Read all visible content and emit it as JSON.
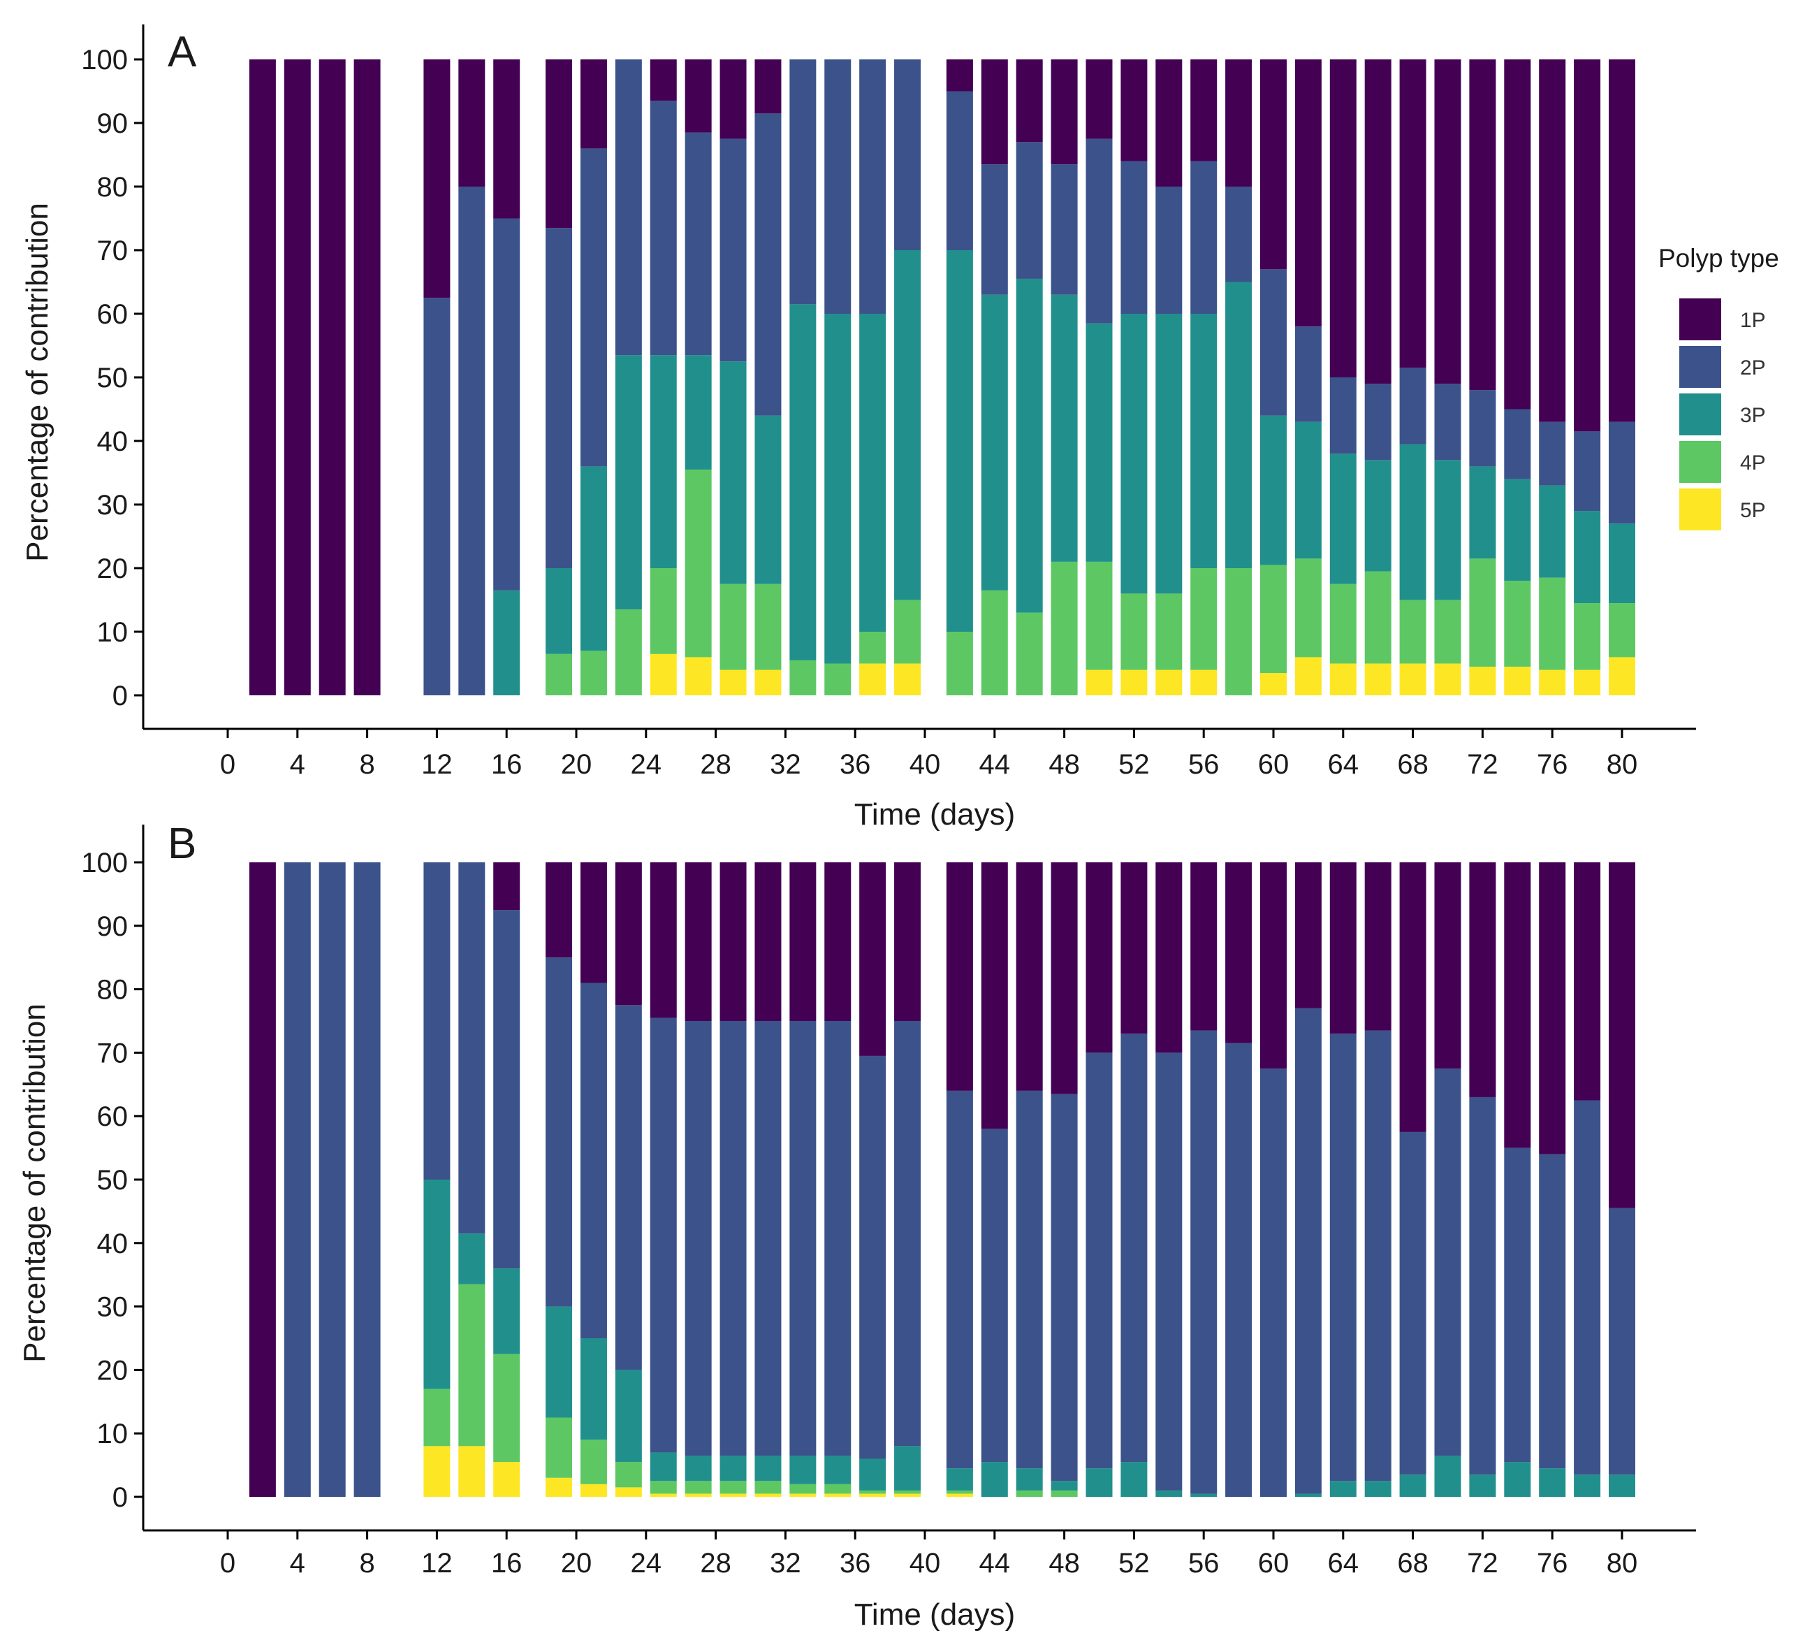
{
  "legend": {
    "title": "Polyp type",
    "entries": [
      {
        "label": "1P",
        "color": "#440154"
      },
      {
        "label": "2P",
        "color": "#3B528B"
      },
      {
        "label": "3P",
        "color": "#21908C"
      },
      {
        "label": "4P",
        "color": "#5DC863"
      },
      {
        "label": "5P",
        "color": "#FDE725"
      }
    ]
  },
  "chart_data": [
    {
      "type": "bar",
      "stacked": true,
      "panel": "A",
      "xlabel": "Time (days)",
      "ylabel": "Percentage of contribution",
      "ylim": [
        0,
        100
      ],
      "y_ticks": [
        0,
        10,
        20,
        30,
        40,
        50,
        60,
        70,
        80,
        90,
        100
      ],
      "x_ticks": [
        0,
        4,
        8,
        12,
        16,
        20,
        24,
        28,
        32,
        36,
        40,
        44,
        48,
        52,
        56,
        60,
        64,
        68,
        72,
        76,
        80
      ],
      "x": [
        2,
        4,
        6,
        8,
        12,
        14,
        16,
        19,
        21,
        23,
        25,
        27,
        29,
        31,
        33,
        35,
        37,
        39,
        42,
        44,
        46,
        48,
        50,
        52,
        54,
        56,
        58,
        60,
        62,
        64,
        66,
        68,
        70,
        72,
        74,
        76,
        78,
        80
      ],
      "series": [
        {
          "name": "5P",
          "values": [
            0,
            0,
            0,
            0,
            0,
            0,
            0,
            0,
            0,
            0,
            6.5,
            6,
            4,
            4,
            0,
            0,
            5,
            5,
            0,
            0,
            0,
            0,
            4,
            4,
            4,
            4,
            0,
            3.5,
            6,
            5,
            5,
            5,
            5,
            4.5,
            4.5,
            4,
            4,
            6
          ]
        },
        {
          "name": "4P",
          "values": [
            0,
            0,
            0,
            0,
            0,
            0,
            0,
            6.5,
            7,
            13.5,
            13.5,
            29.5,
            13.5,
            13.5,
            5.5,
            5,
            5,
            10,
            10,
            16.5,
            13,
            21,
            17,
            12,
            12,
            16,
            20,
            17,
            15.5,
            12.5,
            14.5,
            10,
            10,
            17,
            13.5,
            14.5,
            10.5,
            8.5
          ]
        },
        {
          "name": "3P",
          "values": [
            0,
            0,
            0,
            0,
            0,
            0,
            16.5,
            13.5,
            29,
            40,
            33.5,
            18,
            35,
            26.5,
            56,
            55,
            50,
            55,
            60,
            46.5,
            52.5,
            42,
            37.5,
            44,
            44,
            40,
            45,
            23.5,
            21.5,
            20.5,
            17.5,
            24.5,
            22,
            14.5,
            16,
            14.5,
            14.5,
            12.5
          ]
        },
        {
          "name": "2P",
          "values": [
            0,
            0,
            0,
            0,
            62.5,
            80,
            58.5,
            53.5,
            50,
            46.5,
            40,
            35,
            35,
            47.5,
            38.5,
            40,
            40,
            30,
            25,
            20.5,
            21.5,
            20.5,
            29,
            24,
            20,
            24,
            15,
            23,
            15,
            12,
            12,
            12,
            12,
            12,
            11,
            10,
            12.5,
            16
          ]
        },
        {
          "name": "1P",
          "values": [
            100,
            100,
            100,
            100,
            37.5,
            20,
            25,
            26.5,
            14,
            0,
            6.5,
            11.5,
            12.5,
            8.5,
            0,
            0,
            0,
            0,
            5,
            16.5,
            13,
            16.5,
            12.5,
            16,
            20,
            16,
            20,
            33,
            42,
            50,
            51,
            48.5,
            51,
            52,
            55,
            57,
            58.5,
            57
          ]
        }
      ]
    },
    {
      "type": "bar",
      "stacked": true,
      "panel": "B",
      "xlabel": "Time (days)",
      "ylabel": "Percentage of contribution",
      "ylim": [
        0,
        100
      ],
      "y_ticks": [
        0,
        10,
        20,
        30,
        40,
        50,
        60,
        70,
        80,
        90,
        100
      ],
      "x_ticks": [
        0,
        4,
        8,
        12,
        16,
        20,
        24,
        28,
        32,
        36,
        40,
        44,
        48,
        52,
        56,
        60,
        64,
        68,
        72,
        76,
        80
      ],
      "x": [
        2,
        4,
        6,
        8,
        12,
        14,
        16,
        19,
        21,
        23,
        25,
        27,
        29,
        31,
        33,
        35,
        37,
        39,
        42,
        44,
        46,
        48,
        50,
        52,
        54,
        56,
        58,
        60,
        62,
        64,
        66,
        68,
        70,
        72,
        74,
        76,
        78,
        80
      ],
      "series": [
        {
          "name": "5P",
          "values": [
            0,
            0,
            0,
            0,
            8,
            8,
            5.5,
            3,
            2,
            1.5,
            0.5,
            0.5,
            0.5,
            0.5,
            0.5,
            0.5,
            0.5,
            0.5,
            0.5,
            0,
            0,
            0,
            0,
            0,
            0,
            0,
            0,
            0,
            0,
            0,
            0,
            0,
            0,
            0,
            0,
            0,
            0,
            0
          ]
        },
        {
          "name": "4P",
          "values": [
            0,
            0,
            0,
            0,
            9,
            25.5,
            17,
            9.5,
            7,
            4,
            2,
            2,
            2,
            2,
            1.5,
            1.5,
            0.5,
            0.5,
            0.5,
            0,
            1,
            1,
            0,
            0,
            0,
            0,
            0,
            0,
            0,
            0,
            0,
            0,
            0,
            0,
            0,
            0,
            0,
            0
          ]
        },
        {
          "name": "3P",
          "values": [
            0,
            0,
            0,
            0,
            33,
            8,
            13.5,
            17.5,
            16,
            14.5,
            4.5,
            4,
            4,
            4,
            4.5,
            4.5,
            5,
            7,
            3.5,
            5.5,
            3.5,
            1.5,
            4.5,
            5.5,
            1,
            0.5,
            0,
            0,
            0.5,
            2.5,
            2.5,
            3.5,
            6.5,
            3.5,
            5.5,
            4.5,
            3.5,
            3.5
          ]
        },
        {
          "name": "2P",
          "values": [
            0,
            100,
            100,
            100,
            50,
            58.5,
            56.5,
            55,
            56,
            57.5,
            68.5,
            68.5,
            68.5,
            68.5,
            68.5,
            68.5,
            63.5,
            67,
            59.5,
            52.5,
            59.5,
            61,
            65.5,
            67.5,
            69,
            73,
            71.5,
            67.5,
            76.5,
            70.5,
            71,
            54,
            61,
            59.5,
            49.5,
            49.5,
            59,
            42
          ]
        },
        {
          "name": "1P",
          "values": [
            100,
            0,
            0,
            0,
            0,
            0,
            7.5,
            15,
            19,
            22.5,
            24.5,
            25,
            25,
            25,
            25,
            25,
            30.5,
            25,
            36,
            42,
            36,
            36.5,
            30,
            27,
            30,
            26.5,
            28.5,
            32.5,
            23,
            27,
            26.5,
            42.5,
            32.5,
            37,
            45,
            46,
            37.5,
            54.5
          ]
        }
      ]
    }
  ]
}
